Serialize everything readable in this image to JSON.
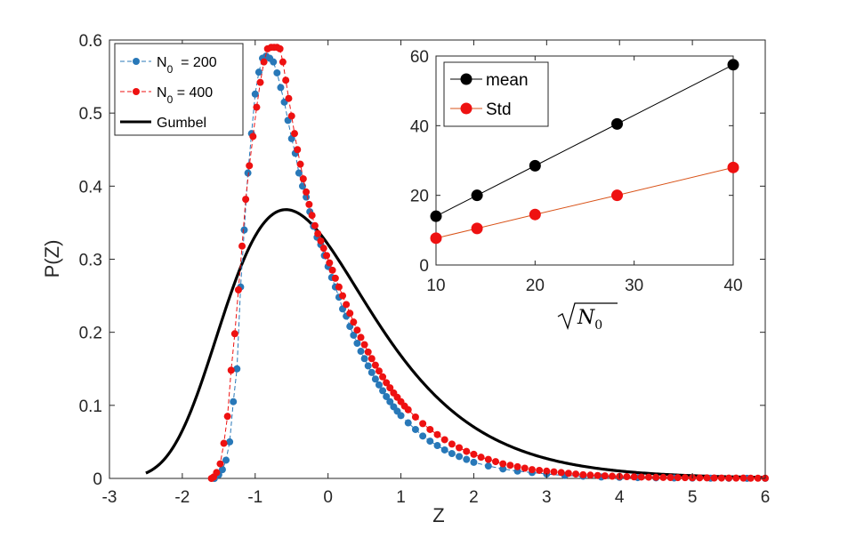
{
  "colors": {
    "blue": "#2878b8",
    "red": "#ee1111",
    "black": "#000000",
    "orange": "#d95319"
  },
  "chart_data": [
    {
      "type": "scatter",
      "title": "",
      "xlabel": "Z",
      "ylabel": "P(Z)",
      "xlim": [
        -3,
        6
      ],
      "ylim": [
        0,
        0.6
      ],
      "xticks": [
        "-3",
        "-2",
        "-1",
        "0",
        "1",
        "2",
        "3",
        "4",
        "5",
        "6"
      ],
      "yticks": [
        "0",
        "0.1",
        "0.2",
        "0.3",
        "0.4",
        "0.5",
        "0.6"
      ],
      "legend_position": "top-left",
      "series": [
        {
          "name": "N_0 = 200",
          "legend_main": "N",
          "legend_sub": "0",
          "legend_rest": "  = 200",
          "style": "dashed line with dots",
          "color": "#2878b8",
          "x": [
            -1.56,
            -1.5,
            -1.45,
            -1.4,
            -1.35,
            -1.3,
            -1.25,
            -1.2,
            -1.15,
            -1.1,
            -1.05,
            -1.0,
            -0.95,
            -0.9,
            -0.85,
            -0.8,
            -0.75,
            -0.7,
            -0.65,
            -0.6,
            -0.55,
            -0.5,
            -0.45,
            -0.4,
            -0.35,
            -0.3,
            -0.25,
            -0.2,
            -0.15,
            -0.1,
            -0.05,
            0.0,
            0.05,
            0.1,
            0.15,
            0.2,
            0.25,
            0.3,
            0.35,
            0.4,
            0.45,
            0.5,
            0.55,
            0.6,
            0.65,
            0.7,
            0.75,
            0.8,
            0.85,
            0.9,
            0.95,
            1.0,
            1.1,
            1.2,
            1.3,
            1.4,
            1.5,
            1.6,
            1.7,
            1.8,
            1.9,
            2.0,
            2.2,
            2.4,
            2.6,
            2.8,
            3.0,
            3.25,
            3.5,
            3.75,
            4.0,
            4.25,
            4.5,
            4.75,
            5.0,
            5.25,
            5.5,
            5.75,
            6.0
          ],
          "y": [
            0.0,
            0.005,
            0.012,
            0.025,
            0.05,
            0.105,
            0.15,
            0.262,
            0.34,
            0.418,
            0.472,
            0.526,
            0.556,
            0.575,
            0.578,
            0.575,
            0.57,
            0.555,
            0.535,
            0.515,
            0.49,
            0.465,
            0.445,
            0.418,
            0.4,
            0.385,
            0.365,
            0.345,
            0.33,
            0.32,
            0.305,
            0.29,
            0.275,
            0.262,
            0.248,
            0.232,
            0.222,
            0.208,
            0.196,
            0.185,
            0.174,
            0.164,
            0.154,
            0.145,
            0.136,
            0.128,
            0.12,
            0.112,
            0.105,
            0.098,
            0.092,
            0.086,
            0.076,
            0.067,
            0.058,
            0.051,
            0.045,
            0.039,
            0.034,
            0.03,
            0.026,
            0.022,
            0.017,
            0.013,
            0.01,
            0.008,
            0.006,
            0.004,
            0.003,
            0.002,
            0.0015,
            0.0011,
            0.0008,
            0.0006,
            0.0004,
            0.0003,
            0.0002,
            0.0001,
            0.0001
          ]
        },
        {
          "name": "N_0 = 400",
          "legend_main": "N",
          "legend_sub": "0",
          "legend_rest": " = 400",
          "style": "dashed line with dots",
          "color": "#ee1111",
          "x": [
            -1.6,
            -1.57,
            -1.53,
            -1.48,
            -1.43,
            -1.38,
            -1.33,
            -1.28,
            -1.23,
            -1.18,
            -1.13,
            -1.08,
            -1.03,
            -0.98,
            -0.93,
            -0.88,
            -0.83,
            -0.78,
            -0.74,
            -0.7,
            -0.66,
            -0.62,
            -0.58,
            -0.54,
            -0.5,
            -0.46,
            -0.42,
            -0.38,
            -0.34,
            -0.3,
            -0.26,
            -0.22,
            -0.18,
            -0.14,
            -0.1,
            -0.06,
            -0.02,
            0.02,
            0.06,
            0.1,
            0.15,
            0.2,
            0.25,
            0.3,
            0.35,
            0.4,
            0.45,
            0.5,
            0.55,
            0.6,
            0.65,
            0.7,
            0.75,
            0.8,
            0.85,
            0.9,
            0.95,
            1.0,
            1.05,
            1.1,
            1.2,
            1.3,
            1.4,
            1.5,
            1.6,
            1.7,
            1.8,
            1.9,
            2.0,
            2.1,
            2.2,
            2.3,
            2.4,
            2.5,
            2.6,
            2.7,
            2.8,
            2.9,
            3.0,
            3.1,
            3.2,
            3.3,
            3.4,
            3.5,
            3.6,
            3.7,
            3.8,
            3.9,
            4.0,
            4.1,
            4.2,
            4.3,
            4.4,
            4.5,
            4.6,
            4.7,
            4.8,
            4.9,
            5.0,
            5.1,
            5.2,
            5.3,
            5.4,
            5.5,
            5.6,
            5.7,
            5.8,
            5.9,
            6.0
          ],
          "y": [
            0.0,
            0.002,
            0.008,
            0.02,
            0.048,
            0.085,
            0.148,
            0.198,
            0.258,
            0.318,
            0.382,
            0.428,
            0.468,
            0.508,
            0.542,
            0.57,
            0.588,
            0.59,
            0.59,
            0.59,
            0.588,
            0.57,
            0.545,
            0.52,
            0.496,
            0.472,
            0.45,
            0.43,
            0.41,
            0.392,
            0.375,
            0.36,
            0.346,
            0.335,
            0.325,
            0.315,
            0.305,
            0.295,
            0.285,
            0.274,
            0.262,
            0.25,
            0.238,
            0.226,
            0.214,
            0.203,
            0.193,
            0.183,
            0.173,
            0.164,
            0.155,
            0.147,
            0.139,
            0.131,
            0.124,
            0.117,
            0.111,
            0.105,
            0.099,
            0.094,
            0.084,
            0.075,
            0.067,
            0.06,
            0.053,
            0.047,
            0.042,
            0.037,
            0.033,
            0.029,
            0.026,
            0.023,
            0.02,
            0.018,
            0.016,
            0.014,
            0.012,
            0.011,
            0.01,
            0.009,
            0.008,
            0.007,
            0.006,
            0.005,
            0.0045,
            0.004,
            0.0035,
            0.003,
            0.0027,
            0.0024,
            0.0021,
            0.0019,
            0.0017,
            0.0015,
            0.0013,
            0.0012,
            0.0011,
            0.001,
            0.0009,
            0.0008,
            0.0007,
            0.0006,
            0.0005,
            0.0005,
            0.0004,
            0.0004,
            0.0003,
            0.0003,
            0.0003
          ]
        },
        {
          "name": "Gumbel",
          "legend_main": "Gumbel",
          "style": "thick solid line",
          "color": "#000000",
          "formula": "exp(-(z+0.577) - exp(-(z+0.577)))",
          "x_range": [
            -2.5,
            6
          ]
        }
      ]
    },
    {
      "type": "line",
      "title": "",
      "xlabel_main": "N",
      "xlabel_sub": "0",
      "xlabel": "sqrt(N_0)",
      "ylabel": "",
      "xlim": [
        10,
        40
      ],
      "ylim": [
        0,
        60
      ],
      "xticks": [
        "10",
        "20",
        "30",
        "40"
      ],
      "yticks": [
        "0",
        "20",
        "40",
        "60"
      ],
      "legend_position": "top-left",
      "series": [
        {
          "name": "mean",
          "color": "#000000",
          "line_color": "#000000",
          "x": [
            10,
            14.14,
            20,
            28.28,
            40
          ],
          "y": [
            14.0,
            20.0,
            28.5,
            40.5,
            57.5
          ]
        },
        {
          "name": "Std",
          "color": "#ee1111",
          "line_color": "#d95319",
          "x": [
            10,
            14.14,
            20,
            28.28,
            40
          ],
          "y": [
            7.7,
            10.5,
            14.5,
            20.0,
            28.0
          ]
        }
      ]
    }
  ]
}
